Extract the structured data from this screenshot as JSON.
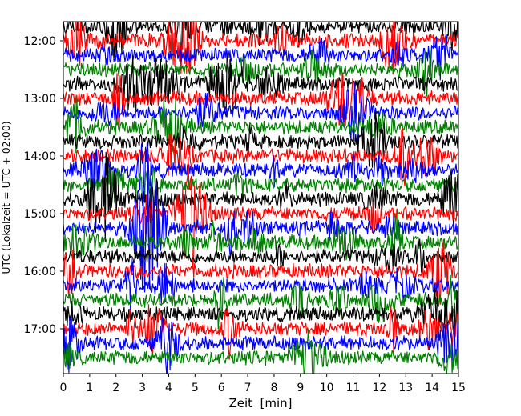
{
  "chart_data": {
    "type": "line",
    "subtype": "helicorder (seismogram drum plot)",
    "title": "",
    "xlabel": "Zeit  [min]",
    "ylabel": "UTC (Lokalzeit = UTC + 02:00)",
    "xlim": [
      0,
      15
    ],
    "x_ticks": [
      0,
      1,
      2,
      3,
      4,
      5,
      6,
      7,
      8,
      9,
      10,
      11,
      12,
      13,
      14,
      15
    ],
    "x_tick_labels": [
      "0",
      "1",
      "2",
      "3",
      "4",
      "5",
      "6",
      "7",
      "8",
      "9",
      "10",
      "11",
      "12",
      "13",
      "14",
      "15"
    ],
    "y_tick_labels": [
      "12:00",
      "13:00",
      "14:00",
      "15:00",
      "16:00",
      "17:00"
    ],
    "y_tick_hours": [
      12,
      13,
      14,
      15,
      16,
      17
    ],
    "time_start_utc": "11:45",
    "line_minutes": 15,
    "line_count": 24,
    "color_cycle": [
      "#000000",
      "#ff0000",
      "#0000ff",
      "#008000"
    ],
    "grid": false,
    "legend": "none"
  }
}
